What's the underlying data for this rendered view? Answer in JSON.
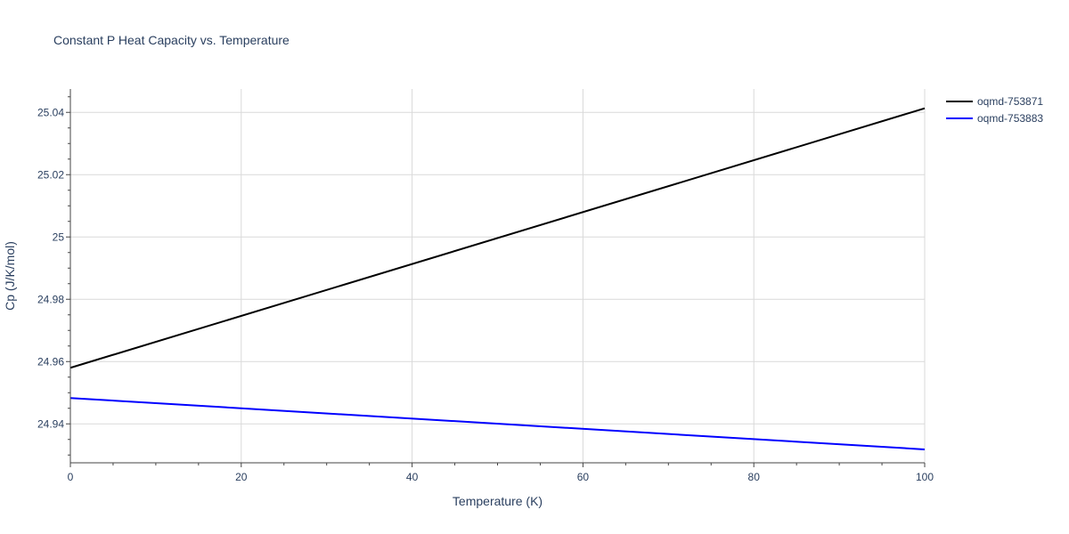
{
  "chart_data": {
    "type": "line",
    "title": "Constant P Heat Capacity vs. Temperature",
    "xlabel": "Temperature (K)",
    "ylabel": "Cp (J/K/mol)",
    "xlim": [
      0,
      100
    ],
    "ylim": [
      24.9275,
      25.0475
    ],
    "xticks": [
      0,
      20,
      40,
      60,
      80,
      100
    ],
    "yticks": [
      24.94,
      24.96,
      24.98,
      25.0,
      25.02,
      25.04
    ],
    "xtick_labels": [
      "0",
      "20",
      "40",
      "60",
      "80",
      "100"
    ],
    "ytick_labels": [
      "24.94",
      "24.96",
      "24.98",
      "25",
      "25.02",
      "25.04"
    ],
    "grid": true,
    "legend_position": "top-right",
    "series": [
      {
        "name": "oqmd-753871",
        "color": "#000000",
        "x": [
          0,
          100
        ],
        "y": [
          24.958,
          25.0413
        ]
      },
      {
        "name": "oqmd-753883",
        "color": "#0000ff",
        "x": [
          0,
          100
        ],
        "y": [
          24.9483,
          24.9318
        ]
      }
    ]
  }
}
